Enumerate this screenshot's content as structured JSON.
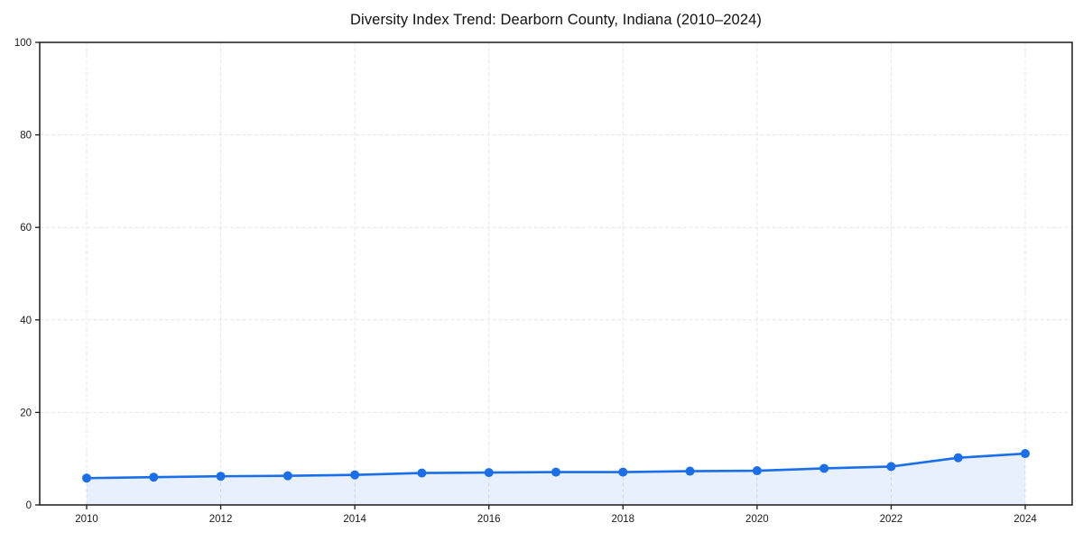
{
  "chart_data": {
    "type": "line",
    "title": "Diversity Index Trend: Dearborn County, Indiana (2010–2024)",
    "xlabel": "",
    "ylabel": "",
    "x": [
      2010,
      2011,
      2012,
      2013,
      2014,
      2015,
      2016,
      2017,
      2018,
      2019,
      2020,
      2021,
      2022,
      2023,
      2024
    ],
    "series": [
      {
        "name": "Diversity Index",
        "values": [
          5.8,
          6.0,
          6.2,
          6.3,
          6.5,
          6.9,
          7.0,
          7.1,
          7.1,
          7.3,
          7.4,
          7.9,
          8.3,
          10.2,
          11.1
        ]
      }
    ],
    "xlim": [
      2009.3,
      2024.7
    ],
    "ylim": [
      0,
      100
    ],
    "xticks": [
      2010,
      2012,
      2014,
      2016,
      2018,
      2020,
      2022,
      2024
    ],
    "yticks": [
      0,
      20,
      40,
      60,
      80,
      100
    ],
    "grid": true,
    "grid_style": "dashed",
    "legend_position": "none",
    "marker": "circle",
    "colors": {
      "line": "#1a6ee8",
      "marker": "#1a6ee8",
      "fill": "#1a6ee8",
      "fill_opacity": 0.1,
      "grid": "#e4e4e4",
      "axis": "#1a1a1a",
      "tick_text": "#1a1a1a",
      "title_text": "#111111",
      "background": "#ffffff"
    }
  }
}
